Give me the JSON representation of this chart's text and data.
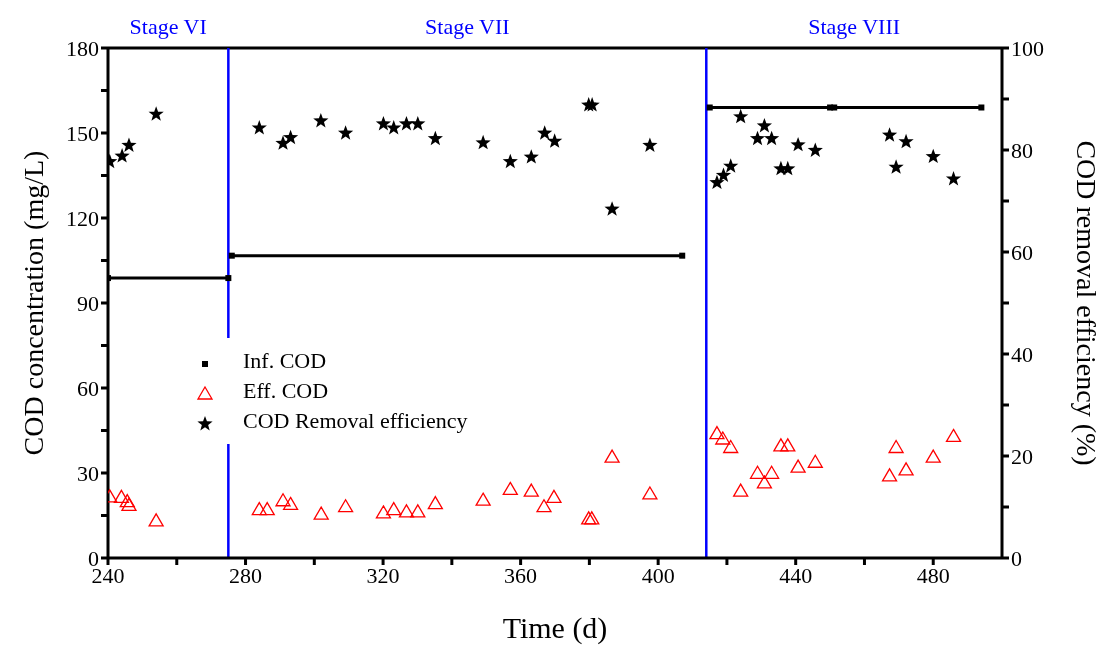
{
  "chart_data": {
    "type": "scatter",
    "xlabel": "Time (d)",
    "ylabel": "COD concentration (mg/L)",
    "y2label": "COD removal efficiency (%)",
    "xlim": [
      240,
      500
    ],
    "xticks": [
      240,
      {
        "value": 260,
        "label": null
      },
      280,
      {
        "value": 300,
        "label": null
      },
      320,
      {
        "value": 340,
        "label": null
      },
      360,
      {
        "value": 380,
        "label": null
      },
      400,
      {
        "value": 420,
        "label": null
      },
      440,
      {
        "value": 460,
        "label": null
      },
      480
    ],
    "ylim": [
      0,
      180
    ],
    "yticks": [
      0,
      {
        "value": 15,
        "label": null
      },
      30,
      {
        "value": 45,
        "label": null
      },
      60,
      {
        "value": 75,
        "label": null
      },
      90,
      {
        "value": 105,
        "label": null
      },
      120,
      {
        "value": 135,
        "label": null
      },
      150,
      {
        "value": 165,
        "label": null
      },
      180
    ],
    "y2lim": [
      0,
      100
    ],
    "y2ticks": [
      0,
      {
        "value": 10,
        "label": null
      },
      20,
      {
        "value": 30,
        "label": null
      },
      40,
      {
        "value": 50,
        "label": null
      },
      60,
      {
        "value": 70,
        "label": null
      },
      80,
      {
        "value": 90,
        "label": null
      },
      100
    ],
    "legend": "left",
    "ref_lines": [
      {
        "axis": "x",
        "value": 275,
        "color": "#0000ff"
      },
      {
        "axis": "x",
        "value": 414,
        "color": "#0000ff"
      }
    ],
    "annotations": [
      "Stage VI",
      "Stage VII",
      "Stage VIII"
    ],
    "series": [
      {
        "name": "Inf. COD",
        "type": "line",
        "color": "#000000",
        "marker": "square",
        "x": [
          240,
          275,
          275.5,
          276,
          407,
          410,
          415,
          450,
          450.7,
          451.2,
          494
        ],
        "values": [
          98.8,
          98.8,
          null,
          106.7,
          106.7,
          null,
          159,
          159,
          null,
          159,
          159
        ]
      },
      {
        "name": "Eff. COD",
        "color": "#ff0000",
        "marker": "triangle",
        "x": [
          240.5,
          243.9,
          245.6,
          246.1,
          254,
          284,
          286.3,
          290.9,
          293.1,
          302,
          309.1,
          320.1,
          323.1,
          326.8,
          330.1,
          335.2,
          349.1,
          357,
          363.1,
          366.8,
          369.7,
          379.8,
          380.7,
          386.6,
          397.6,
          417.1,
          418.8,
          421.1,
          424,
          428.9,
          430.9,
          433,
          435.7,
          437.7,
          440.7,
          445.7,
          467.3,
          469.2,
          472.1,
          480,
          485.9
        ],
        "values": [
          21.6,
          21.4,
          19.9,
          18.6,
          13.1,
          17.1,
          17.1,
          20.2,
          18.9,
          15.5,
          18.1,
          15.9,
          17.1,
          16.3,
          16.3,
          19.2,
          20.4,
          24.2,
          23.6,
          18.1,
          21.4,
          13.8,
          13.8,
          35.6,
          22.6,
          43.9,
          42,
          39,
          23.6,
          29.9,
          26.5,
          29.9,
          39.6,
          39.6,
          32.1,
          33.8,
          29,
          39,
          31.1,
          35.6,
          42.9
        ]
      },
      {
        "name": "COD Removal efficiency",
        "color": "#000000",
        "marker": "star",
        "axis": "y2",
        "x": [
          240.5,
          244.1,
          246.1,
          254,
          284,
          290.9,
          293.1,
          301.9,
          309.1,
          320.1,
          323.1,
          326.8,
          330.1,
          335.2,
          349.1,
          357,
          363.1,
          367,
          369.9,
          379.8,
          380.8,
          386.6,
          397.6,
          417.1,
          419,
          421.1,
          424,
          428.9,
          430.9,
          433,
          435.7,
          437.7,
          440.7,
          445.7,
          467.3,
          469.2,
          472.1,
          480,
          485.9
        ],
        "values": [
          77.7,
          78.8,
          80.9,
          87,
          84.3,
          81.3,
          82.4,
          85.7,
          83.3,
          85.1,
          84.3,
          85.1,
          85.1,
          82.2,
          81.4,
          77.7,
          78.6,
          83.3,
          81.7,
          88.8,
          88.8,
          68.4,
          80.9,
          73.6,
          75,
          76.8,
          86.5,
          82.2,
          84.7,
          82.2,
          76.3,
          76.3,
          81,
          79.9,
          82.9,
          76.6,
          81.6,
          78.7,
          74.3
        ]
      }
    ]
  }
}
